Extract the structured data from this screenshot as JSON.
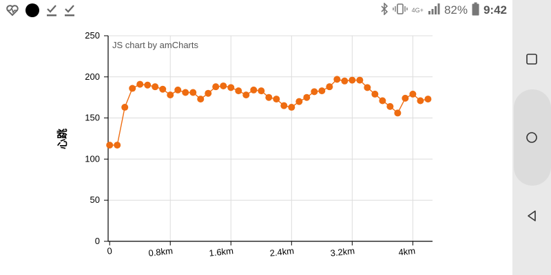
{
  "status_bar": {
    "left_icons": [
      "heart-rate-icon",
      "dot-icon",
      "check-download-icon",
      "check-download-icon"
    ],
    "right_icons": [
      "bluetooth-icon",
      "vibrate-icon",
      "network-4g-icon",
      "signal-icon",
      "battery-icon"
    ],
    "network_label": "4G+",
    "battery_percent": "82%",
    "time": "9:42"
  },
  "nav_bar": {
    "buttons": [
      "recents-icon",
      "home-icon",
      "back-icon"
    ]
  },
  "chart_credit": "JS chart by amCharts",
  "chart_data": {
    "type": "line",
    "title": "",
    "xlabel": "",
    "ylabel": "心跳",
    "x_unit": "km",
    "xlim": [
      -0.02,
      4.26
    ],
    "ylim": [
      0,
      250
    ],
    "y_ticks": [
      "0",
      "50",
      "100",
      "150",
      "200",
      "250"
    ],
    "x_ticks": [
      {
        "value": 0,
        "label": "0"
      },
      {
        "value": 0.8,
        "label": "0.8km"
      },
      {
        "value": 1.6,
        "label": "1.6km"
      },
      {
        "value": 2.4,
        "label": "2.4km"
      },
      {
        "value": 3.2,
        "label": "3.2km"
      },
      {
        "value": 4.0,
        "label": "4km"
      }
    ],
    "grid": true,
    "series": [
      {
        "color": "#ee6c11",
        "x": [
          0,
          0.1,
          0.2,
          0.3,
          0.4,
          0.5,
          0.6,
          0.7,
          0.8,
          0.9,
          1.0,
          1.1,
          1.2,
          1.3,
          1.4,
          1.5,
          1.6,
          1.7,
          1.8,
          1.9,
          2.0,
          2.1,
          2.2,
          2.3,
          2.4,
          2.5,
          2.6,
          2.7,
          2.8,
          2.9,
          3.0,
          3.1,
          3.2,
          3.3,
          3.4,
          3.5,
          3.6,
          3.7,
          3.8,
          3.9,
          4.0,
          4.1,
          4.2
        ],
        "y": [
          117,
          117,
          163,
          186,
          191,
          190,
          188,
          185,
          178,
          184,
          181,
          181,
          173,
          180,
          188,
          189,
          187,
          183,
          178,
          184,
          183,
          175,
          173,
          165,
          163,
          170,
          175,
          182,
          183,
          188,
          197,
          195,
          196,
          196,
          187,
          179,
          171,
          164,
          156,
          174,
          179,
          171,
          173
        ]
      }
    ]
  }
}
